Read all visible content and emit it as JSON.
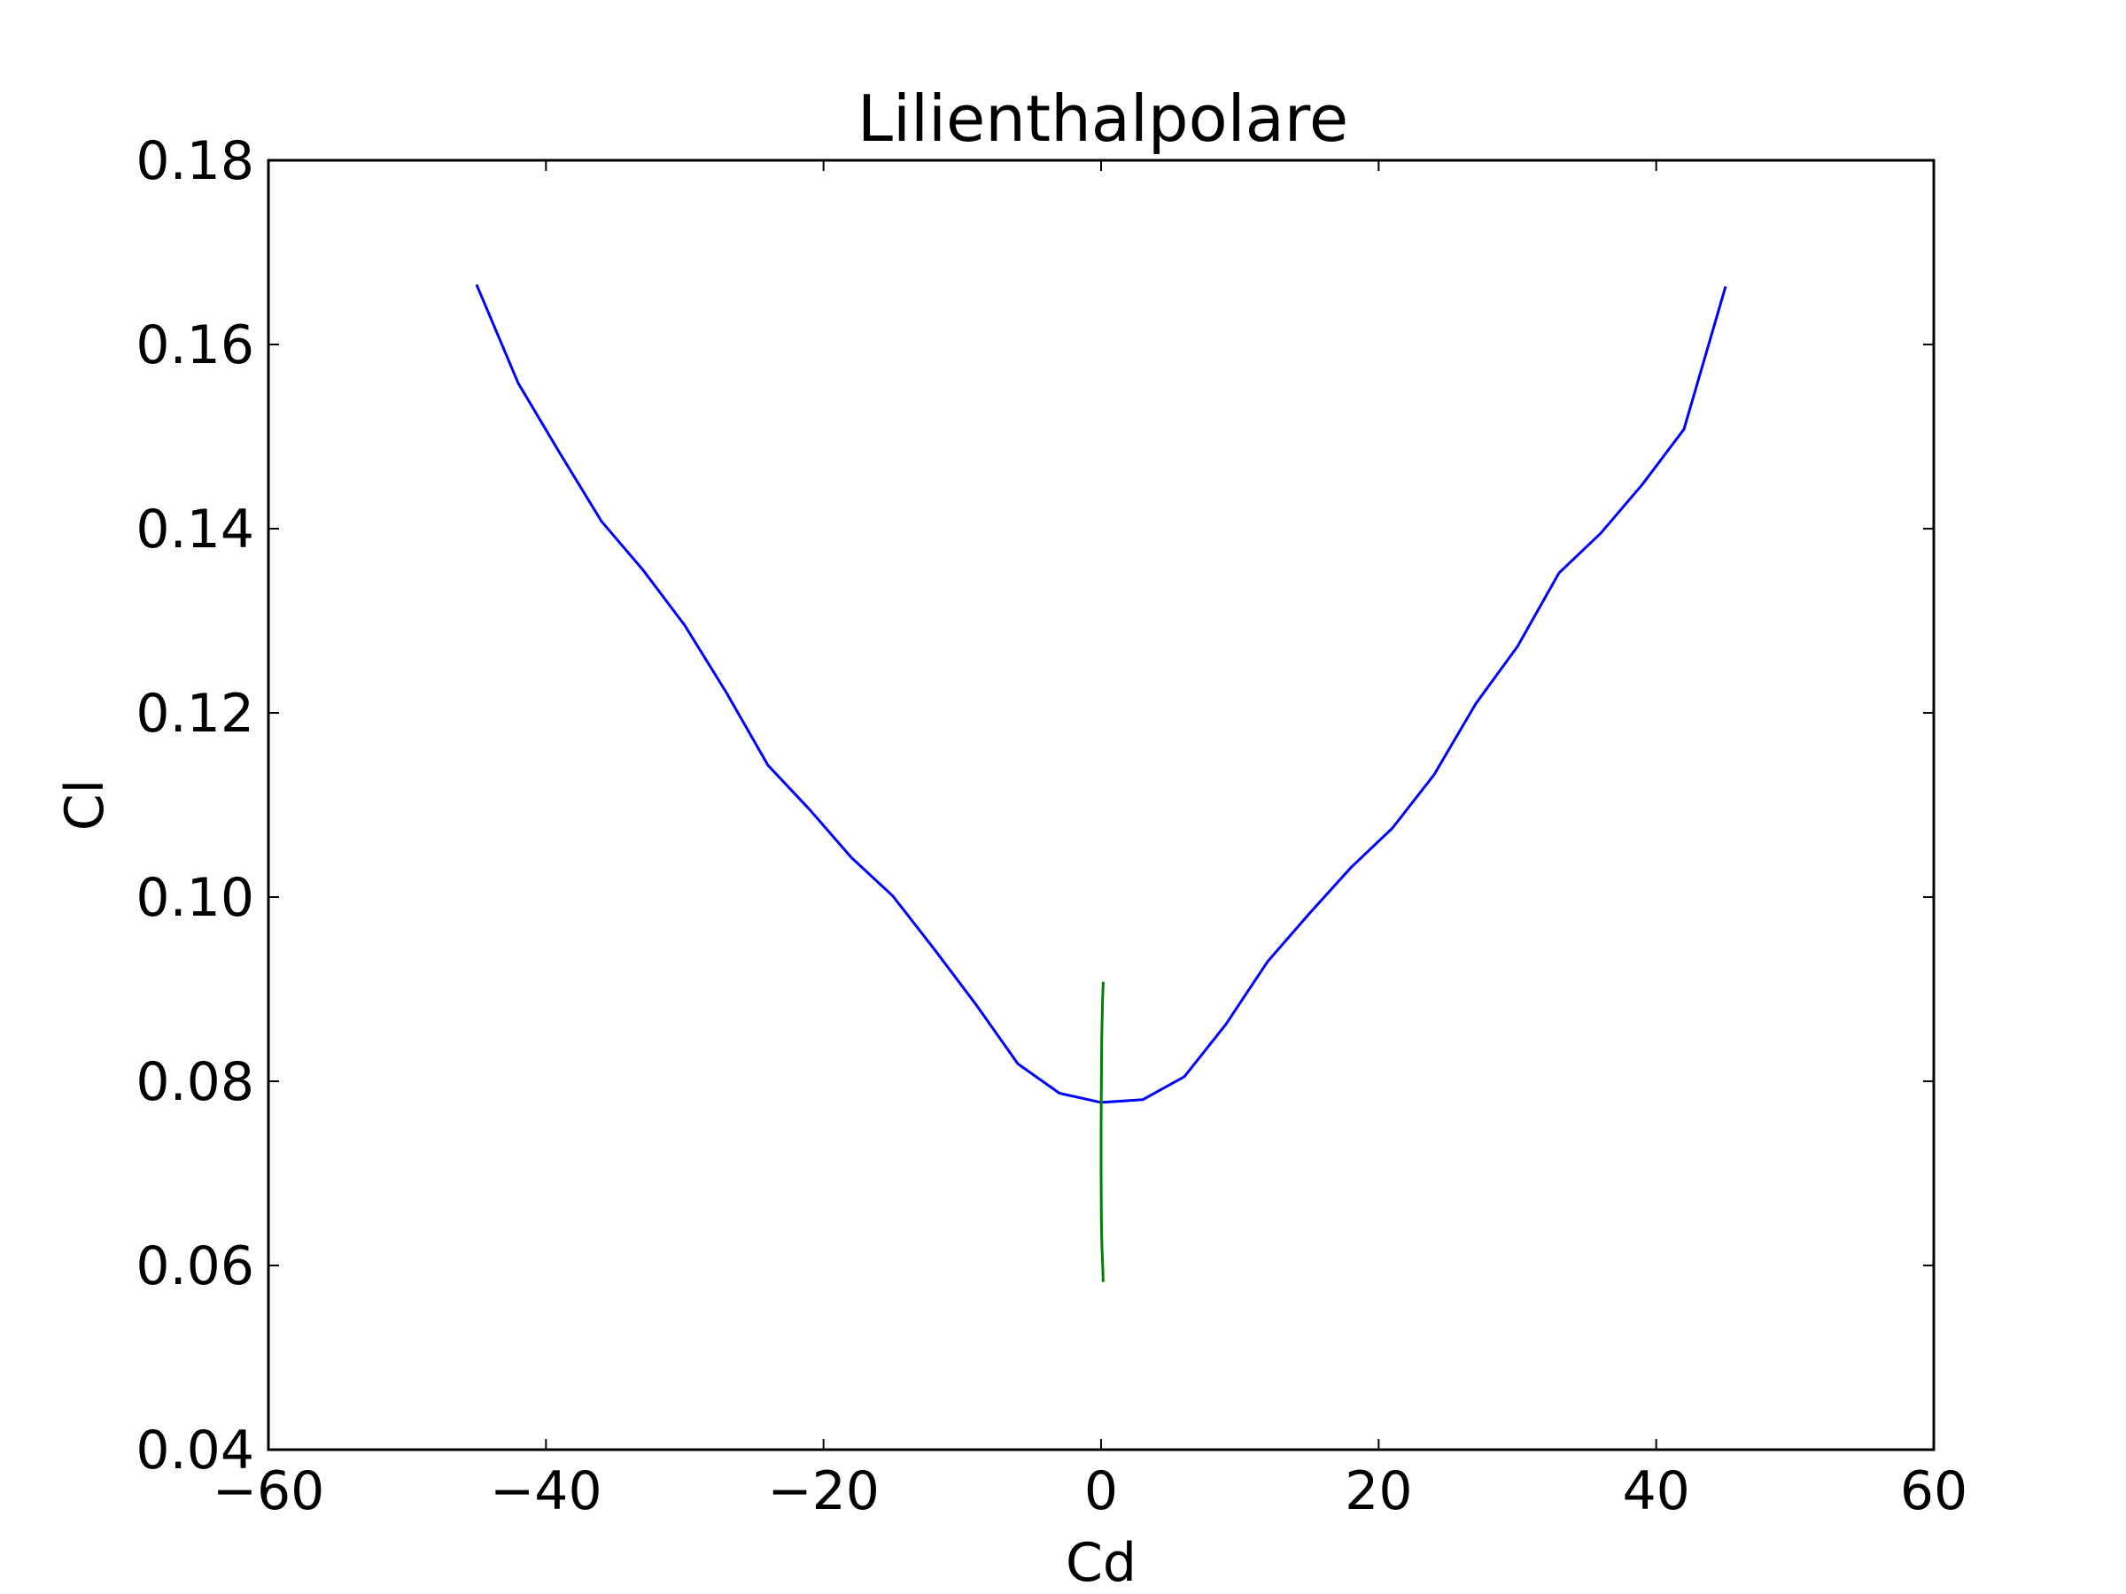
{
  "chart_data": {
    "type": "line",
    "title": "Lilienthalpolare",
    "xlabel": "Cd",
    "ylabel": "Cl",
    "xlim": [
      -60,
      60
    ],
    "ylim": [
      0.04,
      0.18
    ],
    "grid": false,
    "x_ticks": [
      -60,
      -40,
      -20,
      0,
      20,
      40,
      60
    ],
    "x_tick_labels": [
      "−60",
      "−40",
      "−20",
      "0",
      "20",
      "40",
      "60"
    ],
    "y_ticks": [
      0.04,
      0.06,
      0.08,
      0.1,
      0.12,
      0.14,
      0.16,
      0.18
    ],
    "y_tick_labels": [
      "0.04",
      "0.06",
      "0.08",
      "0.10",
      "0.12",
      "0.14",
      "0.16",
      "0.18"
    ],
    "colors": {
      "series_1": "#0000ff",
      "series_2": "#008000",
      "axes": "#000000"
    },
    "series": [
      {
        "x": [
          -45,
          -42,
          -39,
          -36,
          -33,
          -30,
          -27,
          -24,
          -21,
          -18,
          -15,
          -12,
          -9,
          -6,
          -3,
          0,
          3,
          6,
          9,
          12,
          15,
          18,
          21,
          24,
          27,
          30,
          33,
          36,
          39,
          42,
          45
        ],
        "y": [
          0.1665,
          0.1558,
          0.1482,
          0.1408,
          0.1355,
          0.1295,
          0.1222,
          0.1143,
          0.1095,
          0.1043,
          0.1001,
          0.0943,
          0.0883,
          0.0819,
          0.0787,
          0.0777,
          0.078,
          0.0805,
          0.0862,
          0.093,
          0.0982,
          0.1032,
          0.1075,
          0.1133,
          0.121,
          0.1272,
          0.1352,
          0.1395,
          0.1448,
          0.1508,
          0.1663
        ]
      },
      {
        "x": [
          0.15,
          0.1,
          0.05,
          0.02,
          0.0,
          0.0,
          0.02,
          0.06,
          0.12,
          0.15
        ],
        "y": [
          0.0908,
          0.0885,
          0.085,
          0.08,
          0.075,
          0.07,
          0.065,
          0.062,
          0.0598,
          0.0582
        ]
      }
    ]
  }
}
